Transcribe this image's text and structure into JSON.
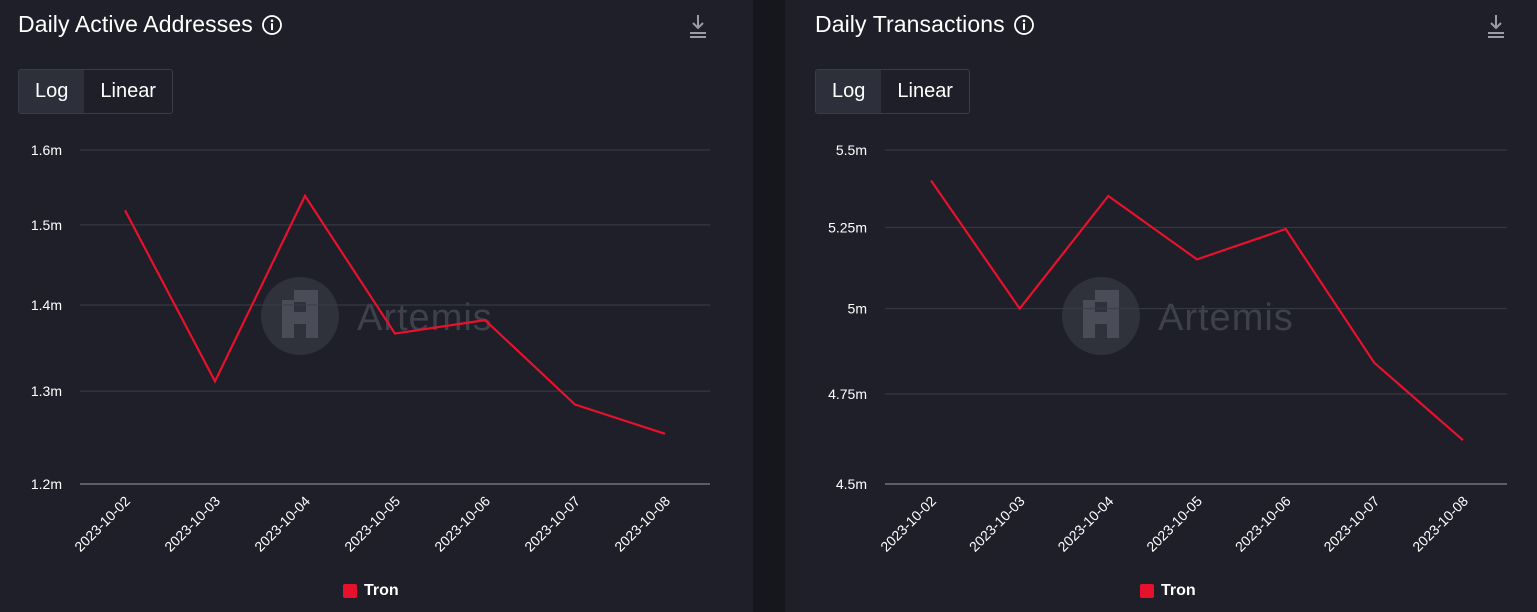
{
  "chart_data": [
    {
      "type": "line",
      "title": "Daily Active Addresses",
      "scale_options": [
        "Log",
        "Linear"
      ],
      "active_scale": "Log",
      "x": [
        "2023-10-02",
        "2023-10-03",
        "2023-10-04",
        "2023-10-05",
        "2023-10-06",
        "2023-10-07",
        "2023-10-08"
      ],
      "series": [
        {
          "name": "Tron",
          "color": "#e8112d",
          "values": [
            1.519,
            1.311,
            1.538,
            1.366,
            1.382,
            1.285,
            1.253
          ]
        }
      ],
      "y_unit": "m",
      "y_ticks": [
        1.2,
        1.3,
        1.4,
        1.5,
        1.6
      ],
      "y_tick_labels": [
        "1.2m",
        "1.3m",
        "1.4m",
        "1.5m",
        "1.6m"
      ],
      "y_scale": "log",
      "ylim": [
        1.2,
        1.6
      ],
      "grid": true,
      "legend": "bottom-center"
    },
    {
      "type": "line",
      "title": "Daily Transactions",
      "scale_options": [
        "Log",
        "Linear"
      ],
      "active_scale": "Log",
      "x": [
        "2023-10-02",
        "2023-10-03",
        "2023-10-04",
        "2023-10-05",
        "2023-10-06",
        "2023-10-07",
        "2023-10-08"
      ],
      "series": [
        {
          "name": "Tron",
          "color": "#e8112d",
          "values": [
            5.4,
            5.0,
            5.35,
            5.15,
            5.245,
            4.84,
            4.62
          ]
        }
      ],
      "y_unit": "m",
      "y_ticks": [
        4.5,
        4.75,
        5.0,
        5.25,
        5.5
      ],
      "y_tick_labels": [
        "4.5m",
        "4.75m",
        "5m",
        "5.25m",
        "5.5m"
      ],
      "y_scale": "log",
      "ylim": [
        4.5,
        5.5
      ],
      "grid": true,
      "legend": "bottom-center"
    }
  ],
  "watermark": "Artemis",
  "colors": {
    "background": "#1e1f28",
    "gridline": "#3a3c47",
    "accent": "#e8112d"
  },
  "icons": [
    "info-icon",
    "download-icon",
    "artemis-logo"
  ]
}
